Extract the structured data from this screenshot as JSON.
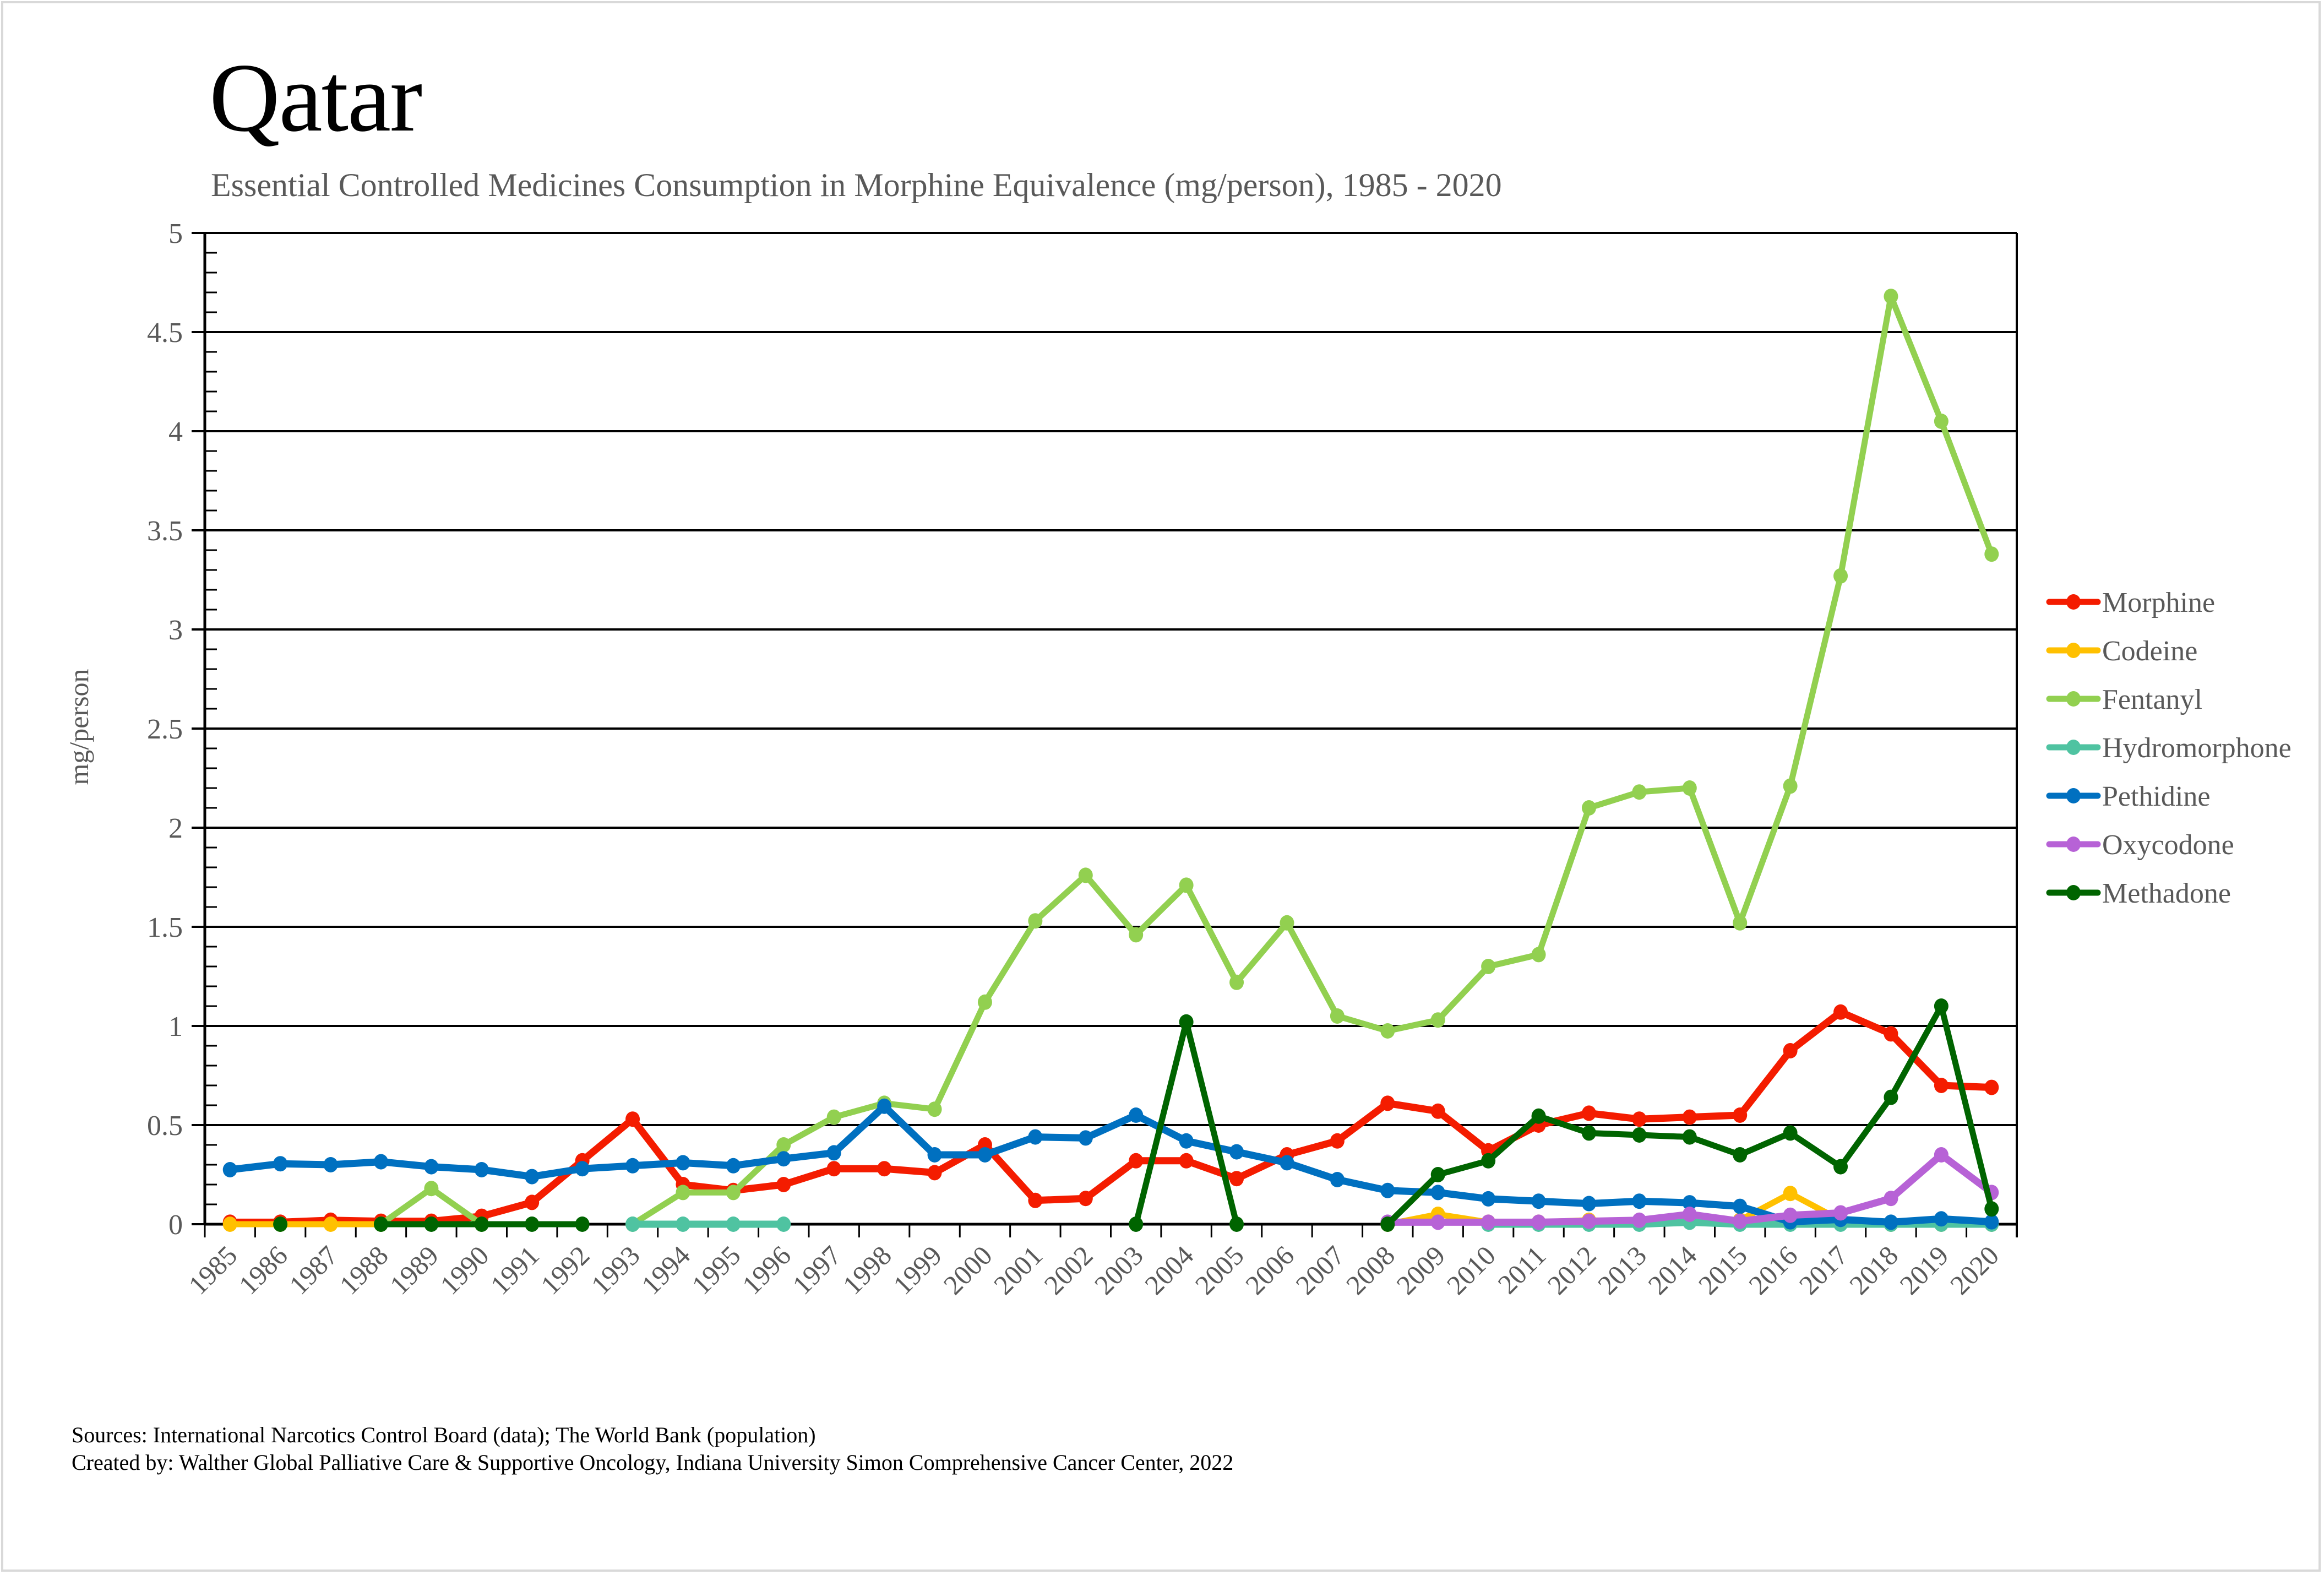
{
  "header": {
    "title": "Qatar",
    "subtitle": "Essential Controlled Medicines Consumption in Morphine Equivalence (mg/person), 1985 - 2020"
  },
  "footer": {
    "sources": "Sources: International Narcotics Control Board (data); The World Bank (population)",
    "created_by": "Created by: Walther Global Palliative Care & Supportive Oncology, Indiana University Simon Comprehensive Cancer Center, 2022"
  },
  "chart_data": {
    "type": "line",
    "title": "Qatar",
    "subtitle": "Essential Controlled Medicines Consumption in Morphine Equivalence (mg/person), 1985 - 2020",
    "xlabel": "",
    "ylabel": "mg/person",
    "ylim": [
      0,
      5
    ],
    "yticks": [
      "0",
      "0.5",
      "1",
      "1.5",
      "2",
      "2.5",
      "3",
      "3.5",
      "4",
      "4.5",
      "5"
    ],
    "ytick_values": [
      0,
      0.5,
      1,
      1.5,
      2,
      2.5,
      3,
      3.5,
      4,
      4.5,
      5
    ],
    "y_minor_step": 0.1,
    "grid": true,
    "legend_position": "right",
    "categories": [
      "1985",
      "1986",
      "1987",
      "1988",
      "1989",
      "1990",
      "1991",
      "1992",
      "1993",
      "1994",
      "1995",
      "1996",
      "1997",
      "1998",
      "1999",
      "2000",
      "2001",
      "2002",
      "2003",
      "2004",
      "2005",
      "2006",
      "2007",
      "2008",
      "2009",
      "2010",
      "2011",
      "2012",
      "2013",
      "2014",
      "2015",
      "2016",
      "2017",
      "2018",
      "2019",
      "2020"
    ],
    "series": [
      {
        "name": "Morphine",
        "color": "#f41c00",
        "values": [
          0.01,
          0.01,
          0.02,
          0.015,
          0.015,
          0.04,
          0.11,
          0.32,
          0.53,
          0.2,
          0.17,
          0.2,
          0.28,
          0.28,
          0.26,
          0.4,
          0.12,
          0.13,
          0.32,
          0.32,
          0.23,
          0.35,
          0.42,
          0.61,
          0.57,
          0.37,
          0.5,
          0.56,
          0.53,
          0.54,
          0.55,
          0.875,
          1.07,
          0.96,
          0.7,
          0.69
        ]
      },
      {
        "name": "Codeine",
        "color": "#ffc000",
        "values": [
          0,
          0,
          0,
          0,
          null,
          null,
          null,
          null,
          null,
          null,
          null,
          null,
          null,
          null,
          null,
          null,
          null,
          null,
          null,
          null,
          null,
          null,
          null,
          0,
          0.05,
          0.01,
          0.01,
          0.02,
          0.01,
          0.02,
          0.02,
          0.155,
          0.02,
          0,
          0,
          0
        ]
      },
      {
        "name": "Fentanyl",
        "color": "#92d050",
        "values": [
          null,
          null,
          null,
          0,
          0.18,
          0,
          null,
          null,
          0,
          0.16,
          0.16,
          0.4,
          0.54,
          0.61,
          0.58,
          1.12,
          1.53,
          1.76,
          1.46,
          1.71,
          1.22,
          1.52,
          1.05,
          0.975,
          1.03,
          1.3,
          1.36,
          2.1,
          2.18,
          2.2,
          1.52,
          2.21,
          3.27,
          4.68,
          4.05,
          3.38
        ]
      },
      {
        "name": "Hydromorphone",
        "color": "#4fc3a1",
        "values": [
          null,
          null,
          null,
          null,
          null,
          null,
          null,
          null,
          0,
          0,
          0,
          0,
          null,
          null,
          null,
          null,
          null,
          null,
          null,
          null,
          null,
          null,
          null,
          null,
          null,
          0,
          0,
          0,
          0,
          0.01,
          0,
          0,
          0,
          0,
          0,
          0
        ]
      },
      {
        "name": "Pethidine",
        "color": "#0070c0",
        "values": [
          0.275,
          0.305,
          0.3,
          0.315,
          0.29,
          0.275,
          0.24,
          0.28,
          0.295,
          0.31,
          0.295,
          0.33,
          0.36,
          0.595,
          0.35,
          0.35,
          0.44,
          0.435,
          0.55,
          0.42,
          0.365,
          0.31,
          0.225,
          0.17,
          0.16,
          0.128,
          0.116,
          0.104,
          0.116,
          0.108,
          0.09,
          0.012,
          0.024,
          0.01,
          0.027,
          0.012
        ]
      },
      {
        "name": "Oxycodone",
        "color": "#b762d6",
        "values": [
          null,
          null,
          null,
          null,
          null,
          null,
          null,
          null,
          null,
          null,
          null,
          null,
          null,
          null,
          null,
          null,
          null,
          null,
          null,
          null,
          null,
          null,
          null,
          0.01,
          0.01,
          0.01,
          0.01,
          0.015,
          0.02,
          0.05,
          0.015,
          0.045,
          0.057,
          0.13,
          0.35,
          0.16
        ]
      },
      {
        "name": "Methadone",
        "color": "#006400",
        "values": [
          null,
          0,
          null,
          0,
          0,
          0,
          0,
          0,
          null,
          null,
          null,
          null,
          null,
          null,
          null,
          null,
          null,
          null,
          0,
          1.02,
          0,
          null,
          null,
          0,
          0.25,
          0.32,
          0.545,
          0.46,
          0.45,
          0.44,
          0.35,
          0.46,
          0.29,
          0.64,
          1.1,
          0.077
        ]
      }
    ]
  }
}
